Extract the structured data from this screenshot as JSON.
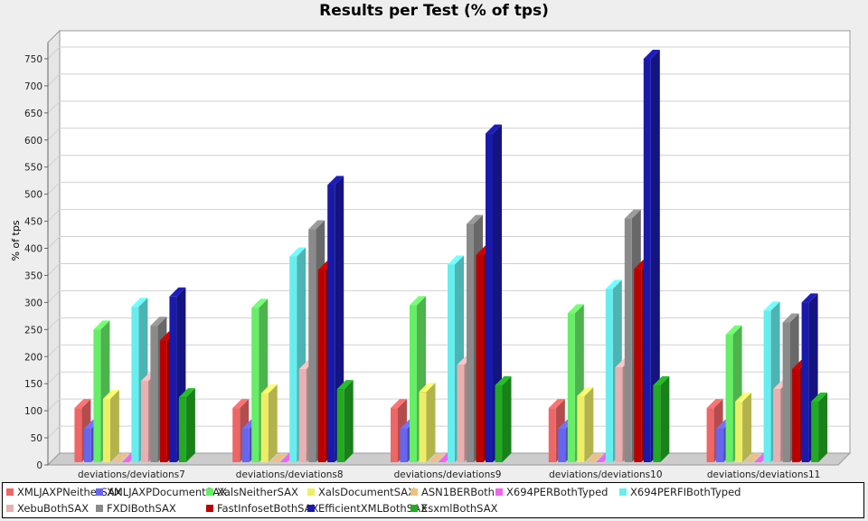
{
  "chart_data": {
    "type": "bar",
    "title": "Results per Test (% of tps)",
    "ylabel": "% of tps",
    "xlabel": "",
    "ylim": [
      0,
      780
    ],
    "yticks": [
      0,
      50,
      100,
      150,
      200,
      250,
      300,
      350,
      400,
      450,
      500,
      550,
      600,
      650,
      700,
      750
    ],
    "grid": true,
    "legend_position": "bottom",
    "categories": [
      "deviations/deviations7",
      "deviations/deviations8",
      "deviations/deviations9",
      "deviations/deviations10",
      "deviations/deviations11"
    ],
    "series": [
      {
        "name": "XMLJAXPNeitherSAX",
        "color": "#ee6666",
        "values": [
          100,
          100,
          100,
          100,
          100
        ]
      },
      {
        "name": "XMLJAXPDocumentSAX",
        "color": "#6666ee",
        "values": [
          62,
          62,
          62,
          62,
          62
        ]
      },
      {
        "name": "XalsNeitherSAX",
        "color": "#66ee66",
        "values": [
          245,
          285,
          290,
          275,
          236
        ]
      },
      {
        "name": "XalsDocumentSAX",
        "color": "#eeee66",
        "values": [
          117,
          127,
          130,
          122,
          112
        ]
      },
      {
        "name": "ASN1BERBoth",
        "color": "#f0c080",
        "values": [
          0,
          0,
          0,
          0,
          0
        ]
      },
      {
        "name": "X694PERBothTyped",
        "color": "#ee66ee",
        "values": [
          0,
          0,
          0,
          0,
          0
        ]
      },
      {
        "name": "X694PERFIBothTyped",
        "color": "#66eeee",
        "values": [
          287,
          380,
          365,
          320,
          280
        ]
      },
      {
        "name": "XebuBothSAX",
        "color": "#e8b0b0",
        "values": [
          150,
          172,
          180,
          175,
          135
        ]
      },
      {
        "name": "FXDIBothSAX",
        "color": "#8a8a8a",
        "values": [
          252,
          430,
          440,
          450,
          258
        ]
      },
      {
        "name": "FastInfosetBothSAX",
        "color": "#bb0000",
        "values": [
          225,
          355,
          383,
          357,
          172
        ]
      },
      {
        "name": "EfficientXMLBothSAX",
        "color": "#1a1aaa",
        "values": [
          306,
          512,
          607,
          745,
          295
        ]
      },
      {
        "name": "EsxmlBothSAX",
        "color": "#22aa22",
        "values": [
          120,
          135,
          142,
          142,
          112
        ]
      }
    ]
  }
}
